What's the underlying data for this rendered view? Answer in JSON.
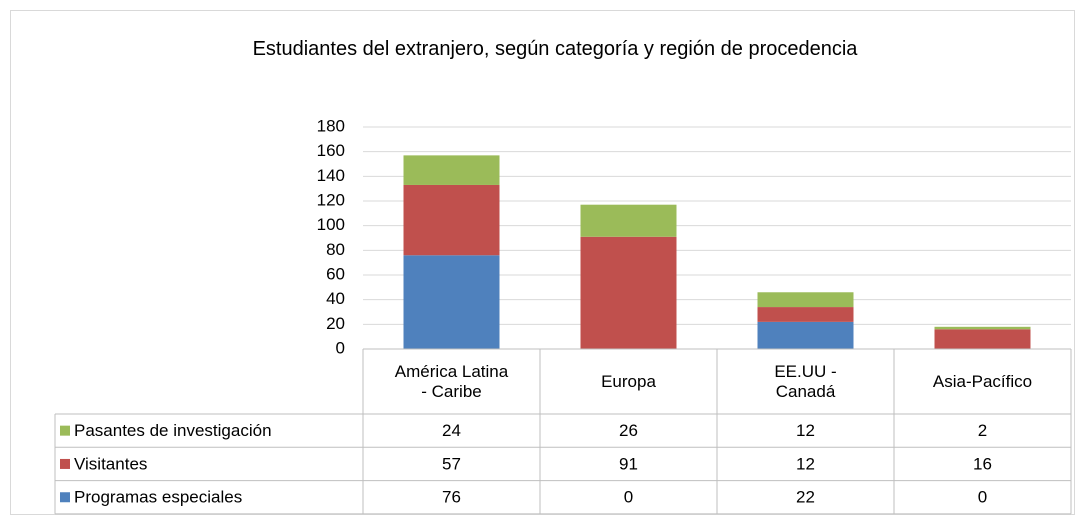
{
  "chart_data": {
    "type": "stacked_bar",
    "title": "Estudiantes del extranjero, según categoría y región de procedencia",
    "categories": [
      "América Latina - Caribe",
      "Europa",
      "EE.UU - Canadá",
      "Asia-Pacífico"
    ],
    "series": [
      {
        "name": "Programas especiales",
        "color": "#4f81bd",
        "values": [
          76,
          0,
          22,
          0
        ]
      },
      {
        "name": "Visitantes",
        "color": "#c0504d",
        "values": [
          57,
          91,
          12,
          16
        ]
      },
      {
        "name": "Pasantes de investigación",
        "color": "#9bbb59",
        "values": [
          24,
          26,
          12,
          2
        ]
      }
    ],
    "ylim": [
      0,
      180
    ],
    "yticks": [
      0,
      20,
      40,
      60,
      80,
      100,
      120,
      140,
      160,
      180
    ],
    "grid": true,
    "data_table": true
  }
}
